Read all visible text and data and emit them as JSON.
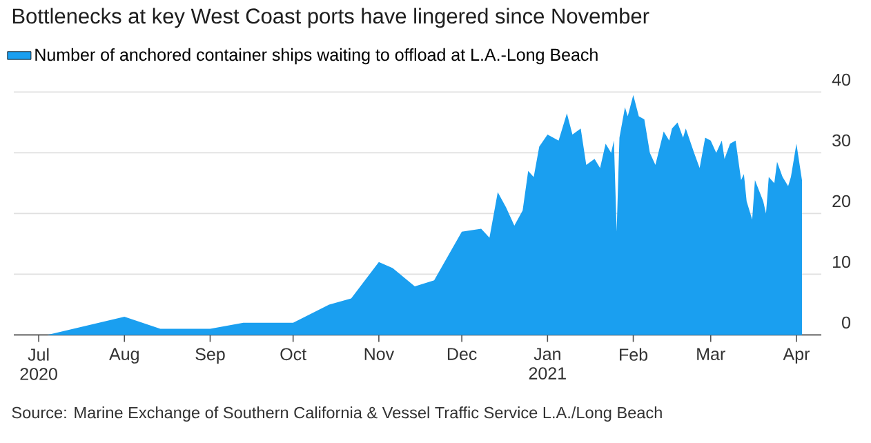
{
  "chart_data": {
    "type": "area",
    "title": "Bottlenecks at key West Coast ports have lingered since November",
    "annotations": [
      "Source: Marine Exchange of Southern California & Vessel Traffic Service L.A./Long Beach"
    ],
    "x": [
      "2020-06-22",
      "2020-07-04",
      "2020-08-01",
      "2020-08-14",
      "2020-09-01",
      "2020-09-13",
      "2020-10-01",
      "2020-10-14",
      "2020-10-22",
      "2020-11-01",
      "2020-11-06",
      "2020-11-14",
      "2020-11-21",
      "2020-12-01",
      "2020-12-08",
      "2020-12-11",
      "2020-12-14",
      "2020-12-17",
      "2020-12-20",
      "2020-12-23",
      "2020-12-25",
      "2020-12-27",
      "2020-12-29",
      "2021-01-01",
      "2021-01-05",
      "2021-01-08",
      "2021-01-10",
      "2021-01-13",
      "2021-01-15",
      "2021-01-18",
      "2021-01-20",
      "2021-01-22",
      "2021-01-24",
      "2021-01-25",
      "2021-01-26",
      "2021-01-27",
      "2021-01-29",
      "2021-01-30",
      "2021-02-01",
      "2021-02-03",
      "2021-02-05",
      "2021-02-07",
      "2021-02-09",
      "2021-02-12",
      "2021-02-14",
      "2021-02-15",
      "2021-02-17",
      "2021-02-19",
      "2021-02-20",
      "2021-02-23",
      "2021-02-25",
      "2021-02-27",
      "2021-03-01",
      "2021-03-03",
      "2021-03-05",
      "2021-03-06",
      "2021-03-08",
      "2021-03-10",
      "2021-03-12",
      "2021-03-13",
      "2021-03-14",
      "2021-03-16",
      "2021-03-17",
      "2021-03-20",
      "2021-03-21",
      "2021-03-22",
      "2021-03-24",
      "2021-03-25",
      "2021-03-27",
      "2021-03-29",
      "2021-03-30",
      "2021-04-01",
      "2021-04-03"
    ],
    "series": [
      {
        "name": "Number of anchored container ships waiting to offload at L.A.-Long Beach",
        "color": "#1a9ff0",
        "values": [
          0,
          0,
          3,
          1,
          1,
          2,
          2,
          5,
          6,
          12,
          11,
          8,
          9,
          17,
          17.5,
          16,
          23.5,
          21,
          18,
          20.5,
          27,
          26,
          31,
          33,
          32,
          36.5,
          33,
          34,
          28,
          29,
          27.5,
          31.5,
          30,
          32,
          17,
          32.5,
          37.5,
          36,
          39.5,
          36,
          35.5,
          30,
          28,
          33.5,
          32,
          34,
          35,
          32.5,
          34,
          30,
          27.5,
          32.5,
          32,
          30,
          32,
          29,
          31.5,
          32,
          25.5,
          26.5,
          22,
          19,
          25.5,
          22,
          20,
          26,
          25,
          28.5,
          26,
          24.5,
          26,
          31.5,
          25.5
        ]
      }
    ],
    "xlim": [
      "2020-06-22",
      "2021-04-10"
    ],
    "ylim": [
      0,
      40
    ],
    "xticks": [
      {
        "value": "2020-07-01",
        "label": "Jul 2020"
      },
      {
        "value": "2020-08-01",
        "label": "Aug"
      },
      {
        "value": "2020-09-01",
        "label": "Sep"
      },
      {
        "value": "2020-10-01",
        "label": "Oct"
      },
      {
        "value": "2020-11-01",
        "label": "Nov"
      },
      {
        "value": "2020-12-01",
        "label": "Dec"
      },
      {
        "value": "2021-01-01",
        "label": "Jan 2021"
      },
      {
        "value": "2021-02-01",
        "label": "Feb"
      },
      {
        "value": "2021-03-01",
        "label": "Mar"
      },
      {
        "value": "2021-04-01",
        "label": "Apr"
      }
    ],
    "yticks": [
      0,
      10,
      20,
      30,
      40
    ],
    "grid": "y",
    "legend": "top left"
  }
}
